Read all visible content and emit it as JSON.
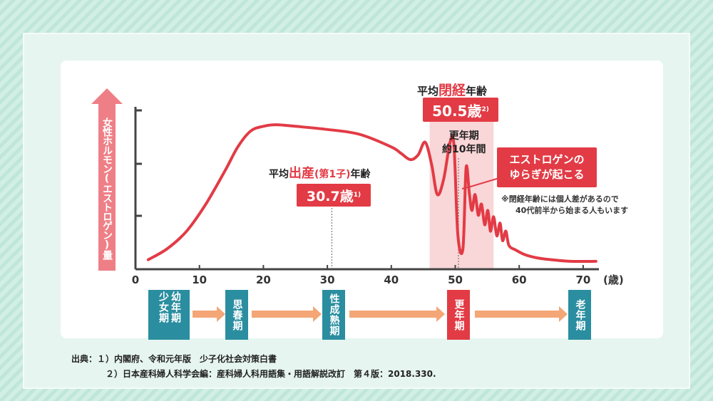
{
  "chart_data": {
    "type": "line",
    "xlabel": "",
    "x_unit": "(歳)",
    "ylabel": "女性ホルモン(エストロゲン)量",
    "xlim": [
      0,
      75
    ],
    "ylim": [
      0,
      100
    ],
    "x_ticks": [
      "0",
      "10",
      "20",
      "30",
      "40",
      "50",
      "60",
      "70"
    ],
    "series": [
      {
        "x": [
          2,
          5,
          8,
          11,
          14,
          16,
          18,
          20,
          22,
          25,
          30,
          35,
          40,
          41.5,
          43,
          44.2,
          45.3,
          46.3,
          47.2,
          48.2,
          49.2,
          49.8,
          50.4,
          51.2,
          51.7,
          52.2,
          52.6,
          53.1,
          53.6,
          54.1,
          54.6,
          55.1,
          55.5,
          56,
          56.5,
          57,
          57.4,
          57.9,
          58.4,
          59.5,
          61,
          63,
          65,
          68,
          72
        ],
        "y": [
          6,
          13,
          24,
          41,
          62,
          77,
          87,
          90,
          91,
          90,
          88,
          85,
          77,
          73,
          69,
          72,
          80,
          66,
          47,
          57,
          80,
          78,
          22,
          13,
          64,
          48,
          37,
          47,
          34,
          41,
          28,
          37,
          24,
          33,
          21,
          29,
          18,
          24,
          15,
          12,
          9,
          7,
          6,
          5,
          5
        ]
      }
    ],
    "annotations": {
      "birth": {
        "x": 30.7,
        "value_text": "30.7歳",
        "note": "1)"
      },
      "menopause": {
        "x": 50.5,
        "value_text": "50.5歳",
        "note": "2)"
      },
      "menopause_period": {
        "x_range": [
          46,
          56
        ]
      }
    }
  },
  "annotations": {
    "menopause_title": [
      "平均",
      "閉経",
      "年齢"
    ],
    "menopause_value": "50.5歳",
    "menopause_note": "2)",
    "period_label_1": "更年期",
    "period_label_2": "約10年間",
    "birth_title": [
      "平均",
      "出産",
      "(第1子)",
      "年齢"
    ],
    "birth_value": "30.7歳",
    "birth_note": "1)",
    "fluctuation_label_1": "エストロゲンの",
    "fluctuation_label_2": "ゆらぎが起こる",
    "note_line_1": "※閉経年齢には個人差があるので",
    "note_line_2": "40代前半から始まる人もいます"
  },
  "stages": [
    {
      "label": "幼年期 少女期"
    },
    {
      "label": "思春期"
    },
    {
      "label": "性成熟期"
    },
    {
      "label": "更年期"
    },
    {
      "label": "老年期"
    }
  ],
  "sources": {
    "line_1": "出典：１）内閣府、令和元年版　少子化社会対策白書",
    "line_2": "２）日本産科婦人科学会編：産科婦人科用語集・用語解説改訂　第４版：2018.330."
  },
  "colors": {
    "curve": "#e23b45",
    "accent_red": "#e23b45",
    "stage_teal": "#2a8ea0",
    "arrow_orange": "#f4a676",
    "ylabel_pink": "#ef7f86",
    "period_band": "#f9d6d8"
  }
}
